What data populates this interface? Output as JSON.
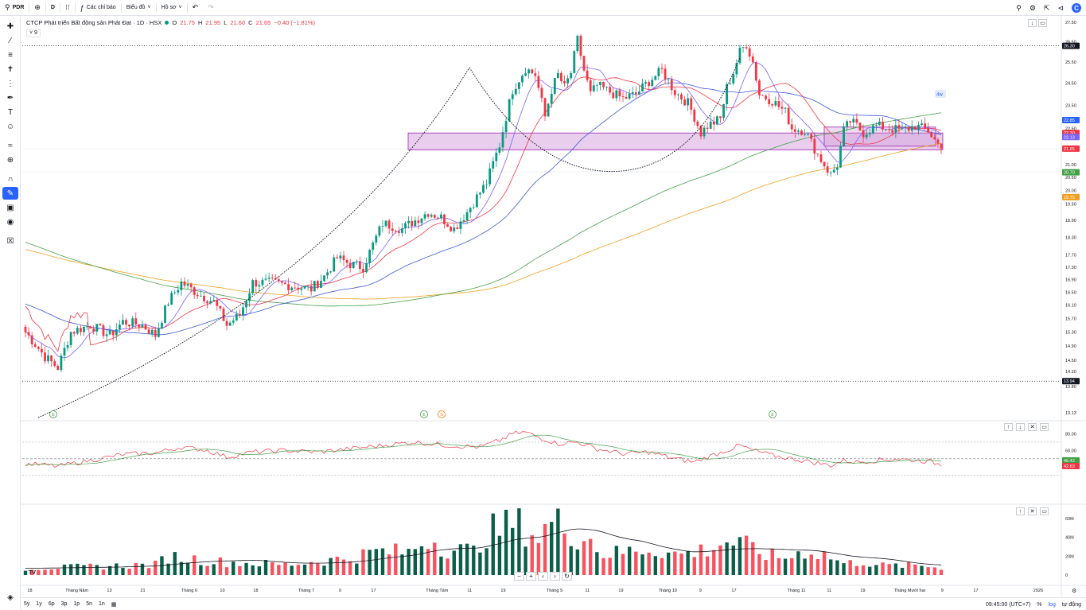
{
  "toolbar": {
    "symbol": "PDR",
    "interval": "D",
    "indicators_label": "Các chỉ báo",
    "chart_type_label": "Biểu đồ",
    "profile_label": "Hồ sơ"
  },
  "legend": {
    "name": "CTCP Phát triển Bất động sản Phát Đạt · 1D · HSX",
    "o_label": "O",
    "o": "21.75",
    "h_label": "H",
    "h": "21.95",
    "l_label": "L",
    "l": "21.60",
    "c_label": "C",
    "c": "21.65",
    "change": "−0.40 (−1.81%)",
    "indicator_count": "9"
  },
  "badge_4w": "4w",
  "colors": {
    "up": "#089981",
    "down": "#f23645",
    "ma_fast": "#7b61ff",
    "ma_red": "#f23645",
    "ma_blue": "#3f5bd6",
    "ma_green": "#43a047",
    "ma_orange": "#f0a020",
    "zone": "#ce93d8"
  },
  "price_axis": {
    "ticks": [
      "27.50",
      "26.50",
      "25.50",
      "24.50",
      "23.50",
      "22.50",
      "21.00",
      "20.50",
      "20.00",
      "19.50",
      "18.90",
      "18.30",
      "17.70",
      "17.30",
      "16.90",
      "16.50",
      "16.10",
      "15.70",
      "15.30",
      "14.90",
      "14.50",
      "14.20",
      "13.80",
      "13.13"
    ],
    "labels": [
      {
        "text": "26.30",
        "color": "#131722",
        "v": 26.3
      },
      {
        "text": "22.85",
        "color": "#2962ff",
        "v": 22.85
      },
      {
        "text": "22.30",
        "color": "#f23645",
        "v": 22.3
      },
      {
        "text": "22.13",
        "color": "#7b61ff",
        "v": 22.13
      },
      {
        "text": "21.65",
        "color": "#f23645",
        "v": 21.65
      },
      {
        "text": "20.70",
        "color": "#43a047",
        "v": 20.7
      },
      {
        "text": "19.75",
        "color": "#f0a020",
        "v": 19.75
      },
      {
        "text": "13.94",
        "color": "#131722",
        "v": 13.94
      }
    ]
  },
  "rsi_axis": {
    "ticks": [
      "80.00",
      "60.00"
    ],
    "labels": [
      {
        "text": "46.42",
        "color": "#43a047"
      },
      {
        "text": "42.83",
        "color": "#f23645"
      }
    ]
  },
  "vol_axis": {
    "ticks": [
      "60M",
      "40M",
      "20M",
      "0"
    ]
  },
  "time_axis": [
    "18",
    "Tháng Năm",
    "13",
    "21",
    "Tháng 6",
    "10",
    "18",
    "Tháng 7",
    "9",
    "17",
    "Tháng Tám",
    "11",
    "19",
    "Tháng 9",
    "11",
    "19",
    "Tháng 10",
    "9",
    "17",
    "Tháng 11",
    "11",
    "19",
    "Tháng Mười hai",
    "9",
    "17",
    "2026"
  ],
  "events": [
    "E",
    "E",
    "S",
    "E"
  ],
  "bottom": {
    "ranges": [
      "5y",
      "1y",
      "6p",
      "3p",
      "1p",
      "5n",
      "1n"
    ],
    "time": "09:45:00 (UTC+7)",
    "pct": "%",
    "log": "log",
    "auto": "tự động"
  },
  "chart_data": {
    "type": "candlestick",
    "series_note": "",
    "ylim": [
      13.13,
      27.5
    ],
    "resistance_lines": [
      26.3,
      13.94
    ],
    "zone": {
      "from": 21.6,
      "to": 22.3
    },
    "anchors": [
      [
        0,
        15.3
      ],
      [
        6,
        14.6
      ],
      [
        10,
        14.3
      ],
      [
        14,
        15.3
      ],
      [
        20,
        15.5
      ],
      [
        26,
        15.2
      ],
      [
        30,
        15.6
      ],
      [
        36,
        15.5
      ],
      [
        40,
        15.2
      ],
      [
        44,
        16.2
      ],
      [
        48,
        16.8
      ],
      [
        54,
        16.4
      ],
      [
        58,
        16.2
      ],
      [
        62,
        15.5
      ],
      [
        66,
        15.8
      ],
      [
        70,
        16.8
      ],
      [
        76,
        16.8
      ],
      [
        82,
        16.7
      ],
      [
        88,
        16.6
      ],
      [
        92,
        17.0
      ],
      [
        96,
        17.6
      ],
      [
        100,
        17.4
      ],
      [
        104,
        17.3
      ],
      [
        110,
        18.8
      ],
      [
        116,
        18.6
      ],
      [
        120,
        18.9
      ],
      [
        124,
        19.2
      ],
      [
        128,
        19.0
      ],
      [
        132,
        18.6
      ],
      [
        136,
        19.2
      ],
      [
        142,
        20.3
      ],
      [
        146,
        21.8
      ],
      [
        150,
        24.2
      ],
      [
        154,
        25.2
      ],
      [
        157,
        24.9
      ],
      [
        160,
        23.0
      ],
      [
        162,
        24.2
      ],
      [
        164,
        24.9
      ],
      [
        166,
        24.3
      ],
      [
        168,
        25.0
      ],
      [
        170,
        26.6
      ],
      [
        172,
        25.1
      ],
      [
        174,
        24.0
      ],
      [
        176,
        24.4
      ],
      [
        180,
        24.1
      ],
      [
        184,
        23.8
      ],
      [
        188,
        24.0
      ],
      [
        192,
        24.6
      ],
      [
        196,
        25.1
      ],
      [
        200,
        24.1
      ],
      [
        204,
        23.6
      ],
      [
        206,
        23.0
      ],
      [
        208,
        22.3
      ],
      [
        210,
        22.6
      ],
      [
        214,
        22.9
      ],
      [
        216,
        24.3
      ],
      [
        218,
        25.0
      ],
      [
        220,
        26.0
      ],
      [
        222,
        26.4
      ],
      [
        224,
        25.5
      ],
      [
        226,
        24.0
      ],
      [
        230,
        23.7
      ],
      [
        234,
        23.2
      ],
      [
        236,
        22.5
      ],
      [
        240,
        22.4
      ],
      [
        244,
        21.4
      ],
      [
        246,
        21.0
      ],
      [
        248,
        20.6
      ],
      [
        250,
        21.0
      ],
      [
        252,
        22.4
      ],
      [
        254,
        22.8
      ],
      [
        256,
        22.6
      ],
      [
        258,
        22.3
      ],
      [
        262,
        22.6
      ],
      [
        266,
        22.5
      ],
      [
        270,
        22.4
      ],
      [
        274,
        22.6
      ],
      [
        278,
        22.4
      ],
      [
        280,
        22.0
      ],
      [
        282,
        21.65
      ]
    ],
    "rsi_anchors": [
      [
        0,
        44
      ],
      [
        10,
        41
      ],
      [
        20,
        48
      ],
      [
        30,
        55
      ],
      [
        40,
        57
      ],
      [
        48,
        64
      ],
      [
        56,
        60
      ],
      [
        62,
        52
      ],
      [
        70,
        58
      ],
      [
        80,
        60
      ],
      [
        90,
        58
      ],
      [
        100,
        62
      ],
      [
        110,
        66
      ],
      [
        120,
        70
      ],
      [
        130,
        66
      ],
      [
        140,
        64
      ],
      [
        146,
        72
      ],
      [
        150,
        80
      ],
      [
        154,
        82
      ],
      [
        158,
        76
      ],
      [
        164,
        68
      ],
      [
        170,
        70
      ],
      [
        176,
        62
      ],
      [
        184,
        56
      ],
      [
        192,
        58
      ],
      [
        200,
        50
      ],
      [
        206,
        46
      ],
      [
        210,
        52
      ],
      [
        216,
        60
      ],
      [
        220,
        66
      ],
      [
        224,
        60
      ],
      [
        230,
        54
      ],
      [
        236,
        50
      ],
      [
        242,
        46
      ],
      [
        248,
        42
      ],
      [
        252,
        48
      ],
      [
        256,
        46
      ],
      [
        262,
        48
      ],
      [
        268,
        50
      ],
      [
        274,
        48
      ],
      [
        278,
        47
      ],
      [
        282,
        43
      ]
    ],
    "vol_anchors": [
      [
        0,
        7
      ],
      [
        20,
        9
      ],
      [
        40,
        11
      ],
      [
        44,
        20
      ],
      [
        60,
        14
      ],
      [
        80,
        11
      ],
      [
        100,
        18
      ],
      [
        108,
        25
      ],
      [
        118,
        24
      ],
      [
        124,
        40
      ],
      [
        130,
        28
      ],
      [
        138,
        25
      ],
      [
        142,
        46
      ],
      [
        146,
        48
      ],
      [
        150,
        55
      ],
      [
        154,
        50
      ],
      [
        158,
        40
      ],
      [
        162,
        56
      ],
      [
        166,
        52
      ],
      [
        170,
        42
      ],
      [
        174,
        38
      ],
      [
        178,
        22
      ],
      [
        184,
        24
      ],
      [
        190,
        28
      ],
      [
        196,
        26
      ],
      [
        200,
        22
      ],
      [
        206,
        24
      ],
      [
        212,
        30
      ],
      [
        216,
        36
      ],
      [
        220,
        32
      ],
      [
        224,
        28
      ],
      [
        228,
        22
      ],
      [
        232,
        18
      ],
      [
        236,
        20
      ],
      [
        240,
        26
      ],
      [
        246,
        22
      ],
      [
        252,
        12
      ],
      [
        258,
        14
      ],
      [
        264,
        10
      ],
      [
        270,
        10
      ],
      [
        276,
        10
      ],
      [
        282,
        8
      ]
    ]
  }
}
